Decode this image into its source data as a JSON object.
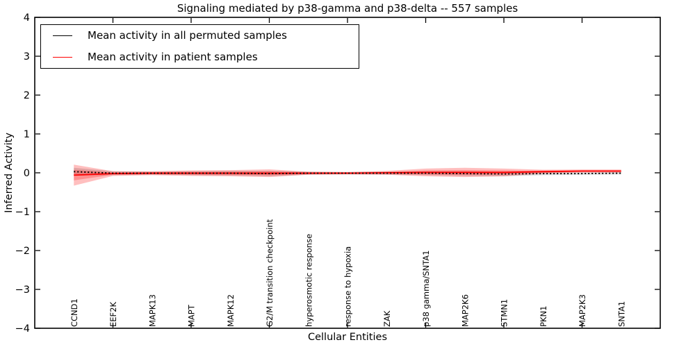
{
  "title": "Signaling mediated by p38-gamma and p38-delta -- 557 samples",
  "axes": {
    "xlabel": "Cellular Entities",
    "ylabel": "Inferred Activity"
  },
  "legend": {
    "entries": [
      {
        "label": "Mean activity in all permuted samples",
        "color": "#000000"
      },
      {
        "label": "Mean activity in patient samples",
        "color": "#ff0000"
      }
    ]
  },
  "chart_data": {
    "type": "line",
    "title": "Signaling mediated by p38-gamma and p38-delta -- 557 samples",
    "xlabel": "Cellular Entities",
    "ylabel": "Inferred Activity",
    "xlim": [
      -1,
      15
    ],
    "ylim": [
      -4,
      4
    ],
    "yticks": [
      -4,
      -3,
      -2,
      -1,
      0,
      1,
      2,
      3,
      4
    ],
    "xtick_units": [
      1,
      3,
      5,
      7,
      9,
      11,
      13
    ],
    "grid": false,
    "legend_position": "upper left",
    "categories": [
      "CCND1",
      "EEF2K",
      "MAPK13",
      "MAPT",
      "MAPK12",
      "G2/M transition checkpoint",
      "hyperosmotic response",
      "response to hypoxia",
      "ZAK",
      "p38 gamma/SNTA1",
      "MAP2K6",
      "STMN1",
      "PKN1",
      "MAP2K3",
      "SNTA1"
    ],
    "series": [
      {
        "name": "Mean activity in all permuted samples",
        "color": "#000000",
        "line_style": "dotted",
        "values": [
          0.03,
          -0.01,
          -0.01,
          -0.01,
          -0.01,
          -0.02,
          -0.01,
          -0.01,
          -0.01,
          -0.01,
          -0.02,
          -0.03,
          -0.02,
          -0.02,
          -0.01
        ],
        "band_std": [
          0.1,
          0.05,
          0.04,
          0.05,
          0.06,
          0.07,
          0.04,
          0.03,
          0.04,
          0.05,
          0.06,
          0.06,
          0.04,
          0.03,
          0.03
        ],
        "band_color": "#000000",
        "band_opacity": 0.15
      },
      {
        "name": "Mean activity in patient samples",
        "color": "#ff0000",
        "line_style": "solid",
        "values": [
          -0.06,
          -0.02,
          -0.01,
          -0.01,
          -0.01,
          -0.01,
          -0.01,
          -0.01,
          0.0,
          0.01,
          0.01,
          0.01,
          0.03,
          0.045,
          0.045
        ],
        "band_std": [
          0.27,
          0.06,
          0.05,
          0.07,
          0.08,
          0.1,
          0.04,
          0.03,
          0.05,
          0.1,
          0.12,
          0.1,
          0.05,
          0.04,
          0.04
        ],
        "band_color": "#ff0000",
        "band_opacity": 0.25
      }
    ]
  }
}
